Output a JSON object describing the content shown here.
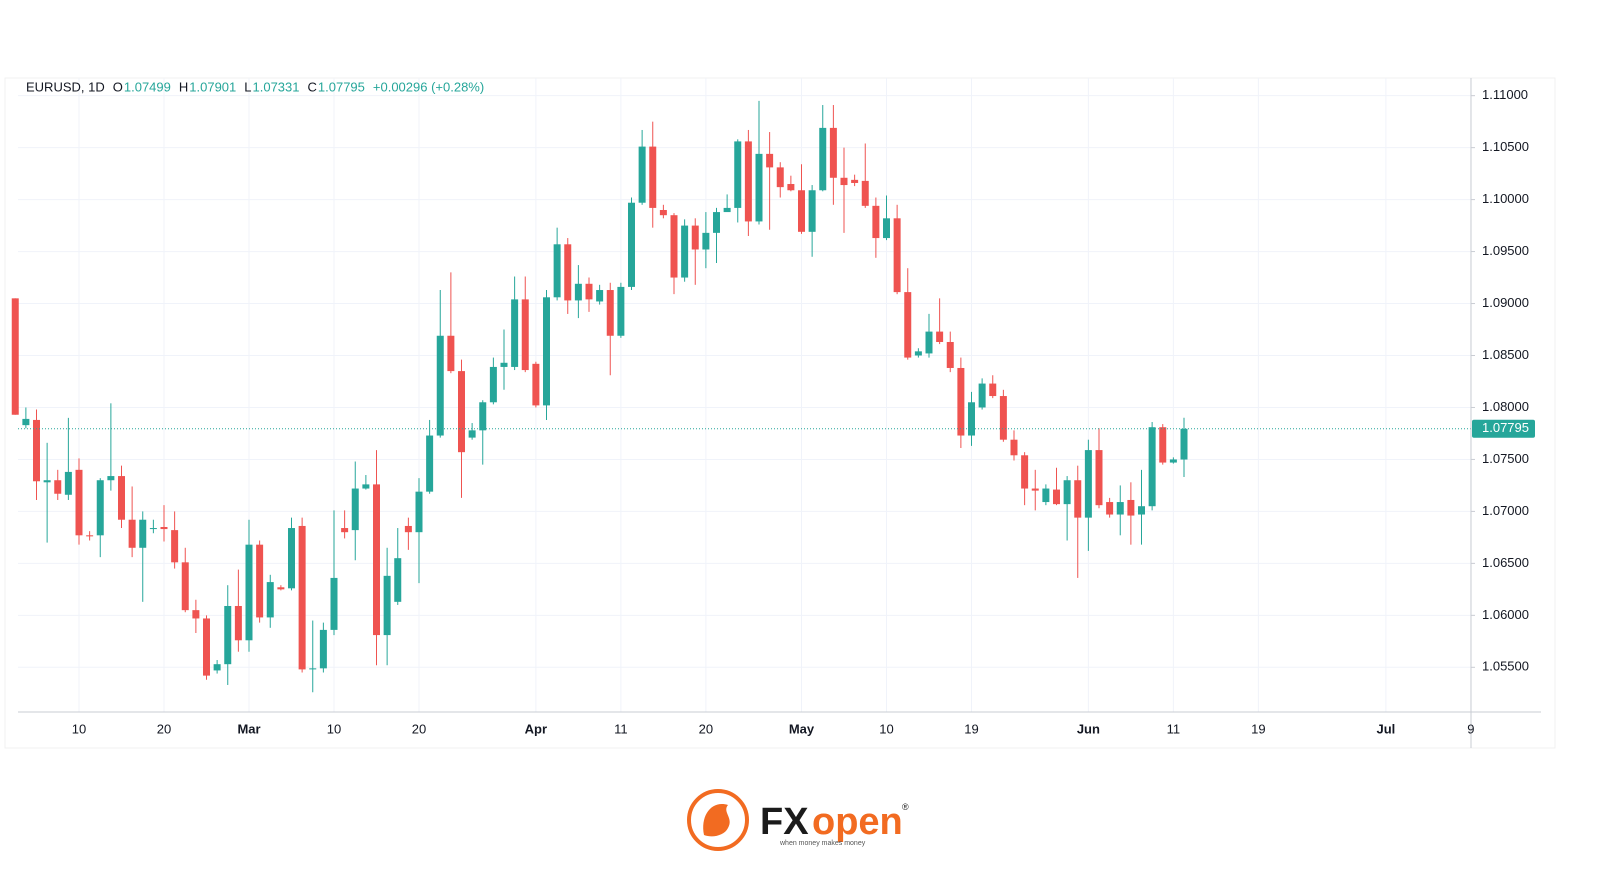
{
  "chart_data": {
    "type": "candlestick",
    "legend": {
      "symbol": "EURUSD, 1D",
      "o": "O",
      "h": "H",
      "l": "L",
      "c": "C",
      "change": "+0.00296 (+0.28%)"
    },
    "up_color": "#26a69a",
    "down_color": "#ef5350",
    "grid": true,
    "ylim": [
      1.0507,
      1.1117
    ],
    "yticks": [
      {
        "value": 1.055,
        "label": "1.05500"
      },
      {
        "value": 1.06,
        "label": "1.06000"
      },
      {
        "value": 1.065,
        "label": "1.06500"
      },
      {
        "value": 1.07,
        "label": "1.07000"
      },
      {
        "value": 1.075,
        "label": "1.07500"
      },
      {
        "value": 1.08,
        "label": "1.08000"
      },
      {
        "value": 1.085,
        "label": "1.08500"
      },
      {
        "value": 1.09,
        "label": "1.09000"
      },
      {
        "value": 1.095,
        "label": "1.09500"
      },
      {
        "value": 1.1,
        "label": "1.10000"
      },
      {
        "value": 1.105,
        "label": "1.10500"
      },
      {
        "value": 1.11,
        "label": "1.11000"
      }
    ],
    "categories": [
      null,
      null,
      null,
      null,
      null,
      null,
      "10",
      null,
      null,
      null,
      null,
      null,
      null,
      null,
      "20",
      null,
      null,
      null,
      null,
      null,
      null,
      null,
      "Mar",
      null,
      null,
      null,
      null,
      null,
      null,
      null,
      "10",
      null,
      null,
      null,
      null,
      null,
      null,
      null,
      "20",
      null,
      null,
      null,
      null,
      null,
      null,
      null,
      null,
      null,
      null,
      "Apr",
      null,
      null,
      null,
      null,
      null,
      null,
      null,
      "11",
      null,
      null,
      null,
      null,
      null,
      null,
      null,
      "20",
      null,
      null,
      null,
      null,
      null,
      null,
      null,
      null,
      "May",
      null,
      null,
      null,
      null,
      null,
      null,
      null,
      "10",
      null,
      null,
      null,
      null,
      null,
      null,
      null,
      "19",
      null,
      null,
      null,
      null,
      null,
      null,
      null,
      null,
      null,
      null,
      "Jun",
      null,
      null,
      null,
      null,
      null,
      null,
      null,
      "11",
      null,
      null,
      null,
      null,
      null,
      null,
      null,
      "19",
      null,
      null,
      null,
      null,
      null,
      null,
      null,
      null,
      null,
      null,
      null,
      "Jul",
      null,
      null,
      null,
      null,
      null,
      null,
      null,
      "9"
    ],
    "open": [
      1.0905,
      1.0783,
      1.0788,
      1.0728,
      1.073,
      1.0716,
      1.074,
      1.0677,
      1.0677,
      1.073,
      1.0734,
      1.0692,
      1.0665,
      1.0683,
      1.0685,
      1.0682,
      1.0651,
      1.0605,
      1.0597,
      1.0547,
      1.0553,
      1.0609,
      1.0576,
      1.0668,
      1.0598,
      1.0627,
      1.0626,
      1.0686,
      1.0548,
      1.0549,
      1.0586,
      1.0684,
      1.0682,
      1.0722,
      1.0726,
      1.0581,
      1.0613,
      1.0686,
      1.068,
      1.0719,
      1.0773,
      1.0869,
      1.0835,
      1.0771,
      1.0778,
      1.0805,
      1.0839,
      1.0839,
      1.0904,
      1.0842,
      1.0802,
      1.0906,
      1.0957,
      1.0903,
      1.0919,
      1.0902,
      1.0913,
      1.0869,
      1.0916,
      1.0997,
      1.1051,
      1.099,
      1.0985,
      1.0925,
      1.0975,
      1.0952,
      1.0968,
      1.0988,
      1.0992,
      1.1056,
      1.0979,
      1.1044,
      1.1031,
      1.1015,
      1.1009,
      1.0969,
      1.1009,
      1.1069,
      1.1021,
      1.1019,
      1.1018,
      1.0994,
      1.0963,
      1.0982,
      1.0911,
      1.085,
      1.0852,
      1.0873,
      1.0863,
      1.0838,
      1.0773,
      1.08,
      1.0823,
      1.0811,
      1.0769,
      1.0754,
      1.0722,
      1.0709,
      1.0721,
      1.0707,
      1.073,
      1.0694,
      1.0759,
      1.0709,
      1.0697,
      1.0711,
      1.0697,
      1.0705,
      1.0781,
      1.0747,
      1.07499,
      null,
      null,
      null,
      null,
      null,
      null,
      null,
      null,
      null,
      null,
      null,
      null,
      null,
      null,
      null,
      null,
      null,
      null,
      null,
      null,
      null,
      null,
      null,
      null,
      null,
      null,
      null
    ],
    "high": [
      1.0905,
      1.08,
      1.0798,
      1.0766,
      1.074,
      1.079,
      1.0751,
      1.0681,
      1.0732,
      1.0804,
      1.0744,
      1.0724,
      1.07,
      1.0692,
      1.0706,
      1.07,
      1.0665,
      1.0615,
      1.06,
      1.0557,
      1.0629,
      1.0644,
      1.0692,
      1.0672,
      1.0639,
      1.0629,
      1.0694,
      1.0694,
      1.0595,
      1.0593,
      1.0701,
      1.0701,
      1.0748,
      1.0735,
      1.0759,
      1.0665,
      1.0684,
      1.0694,
      1.0732,
      1.0788,
      1.0913,
      1.093,
      1.0846,
      1.0785,
      1.0807,
      1.0848,
      1.0875,
      1.0926,
      1.0926,
      1.0844,
      1.0913,
      1.0973,
      1.0963,
      1.0937,
      1.0925,
      1.0918,
      1.092,
      1.092,
      1.1002,
      1.1067,
      1.1075,
      1.0995,
      1.0987,
      1.0981,
      1.0982,
      1.0988,
      1.0992,
      1.1005,
      1.1058,
      1.1067,
      1.1095,
      1.1065,
      1.1036,
      1.1023,
      1.1034,
      1.1014,
      1.1091,
      1.1091,
      1.105,
      1.1024,
      1.1054,
      1.1002,
      1.1004,
      1.0995,
      1.0934,
      1.0857,
      1.089,
      1.0905,
      1.0873,
      1.0848,
      1.0815,
      1.0828,
      1.0831,
      1.0817,
      1.0778,
      1.0757,
      1.074,
      1.0726,
      1.0742,
      1.0734,
      1.0744,
      1.0769,
      1.078,
      1.0713,
      1.0725,
      1.0728,
      1.074,
      1.0786,
      1.0784,
      1.0752,
      1.07901,
      null,
      null,
      null,
      null,
      null,
      null,
      null,
      null,
      null,
      null,
      null,
      null,
      null,
      null,
      null,
      null,
      null,
      null,
      null,
      null,
      null,
      null,
      null,
      null,
      null,
      null,
      null
    ],
    "low": [
      1.0793,
      1.078,
      1.0711,
      1.067,
      1.0711,
      1.0711,
      1.0668,
      1.0672,
      1.0656,
      1.072,
      1.0684,
      1.0656,
      1.0613,
      1.0679,
      1.0671,
      1.0645,
      1.0603,
      1.0583,
      1.0538,
      1.0544,
      1.0533,
      1.0565,
      1.0565,
      1.0593,
      1.0588,
      1.0624,
      1.0624,
      1.0545,
      1.0526,
      1.0545,
      1.0581,
      1.0674,
      1.0653,
      1.0721,
      1.0552,
      1.0552,
      1.061,
      1.0663,
      1.0631,
      1.0717,
      1.0771,
      1.0833,
      1.0713,
      1.0769,
      1.0745,
      1.0803,
      1.0817,
      1.0836,
      1.0834,
      1.08,
      1.0788,
      1.0903,
      1.089,
      1.0886,
      1.0892,
      1.0899,
      1.0831,
      1.0867,
      1.0913,
      1.0995,
      1.0973,
      1.0982,
      1.0909,
      1.0921,
      1.0918,
      1.0934,
      1.0939,
      1.099,
      1.0978,
      1.0965,
      1.0976,
      1.0971,
      1.1002,
      1.1008,
      1.0967,
      1.0945,
      1.1008,
      1.0995,
      1.0968,
      1.1013,
      1.0992,
      1.0944,
      1.0961,
      1.0909,
      1.0846,
      1.0848,
      1.0848,
      1.0861,
      1.0834,
      1.0761,
      1.0763,
      1.0798,
      1.0809,
      1.0767,
      1.0749,
      1.0706,
      1.0701,
      1.0706,
      1.0706,
      1.0672,
      1.0636,
      1.0662,
      1.0703,
      1.0694,
      1.0677,
      1.0668,
      1.0668,
      1.0701,
      1.0745,
      1.0746,
      1.07331,
      null,
      null,
      null,
      null,
      null,
      null,
      null,
      null,
      null,
      null,
      null,
      null,
      null,
      null,
      null,
      null,
      null,
      null,
      null,
      null,
      null,
      null,
      null,
      null,
      null,
      null,
      null
    ],
    "close": [
      1.0793,
      1.0789,
      1.0729,
      1.073,
      1.0717,
      1.0738,
      1.0677,
      1.0676,
      1.073,
      1.0734,
      1.0692,
      1.0665,
      1.0692,
      1.0684,
      1.0683,
      1.0651,
      1.0605,
      1.0597,
      1.0542,
      1.0553,
      1.0609,
      1.0576,
      1.0668,
      1.0598,
      1.0632,
      1.0625,
      1.0684,
      1.0548,
      1.0549,
      1.0586,
      1.0636,
      1.068,
      1.0722,
      1.0726,
      1.0581,
      1.0638,
      1.0655,
      1.068,
      1.0719,
      1.0773,
      1.0869,
      1.0835,
      1.0757,
      1.0778,
      1.0805,
      1.0839,
      1.0843,
      1.0904,
      1.0836,
      1.0802,
      1.0906,
      1.0957,
      1.0903,
      1.0919,
      1.0904,
      1.0913,
      1.0869,
      1.0916,
      1.0997,
      1.1051,
      1.0992,
      1.0985,
      1.0925,
      1.0975,
      1.0952,
      1.0968,
      1.0988,
      1.0992,
      1.1056,
      1.0979,
      1.1044,
      1.1031,
      1.1012,
      1.1009,
      1.0969,
      1.1009,
      1.1069,
      1.1021,
      1.1014,
      1.1016,
      1.0994,
      1.0963,
      1.0982,
      1.0911,
      1.0848,
      1.0854,
      1.0873,
      1.0863,
      1.0838,
      1.0773,
      1.0805,
      1.0823,
      1.0811,
      1.0769,
      1.0754,
      1.0722,
      1.072,
      1.0722,
      1.0707,
      1.073,
      1.0694,
      1.0759,
      1.0706,
      1.0697,
      1.0709,
      1.0696,
      1.0705,
      1.0781,
      1.0747,
      1.075,
      1.07795,
      null,
      null,
      null,
      null,
      null,
      null,
      null,
      null,
      null,
      null,
      null,
      null,
      null,
      null,
      null,
      null,
      null,
      null,
      null,
      null,
      null,
      null,
      null,
      null,
      null,
      null,
      null
    ]
  },
  "logo": {
    "parts": [
      "FX",
      "open"
    ],
    "mark": "®",
    "tagline": "when money makes money"
  }
}
